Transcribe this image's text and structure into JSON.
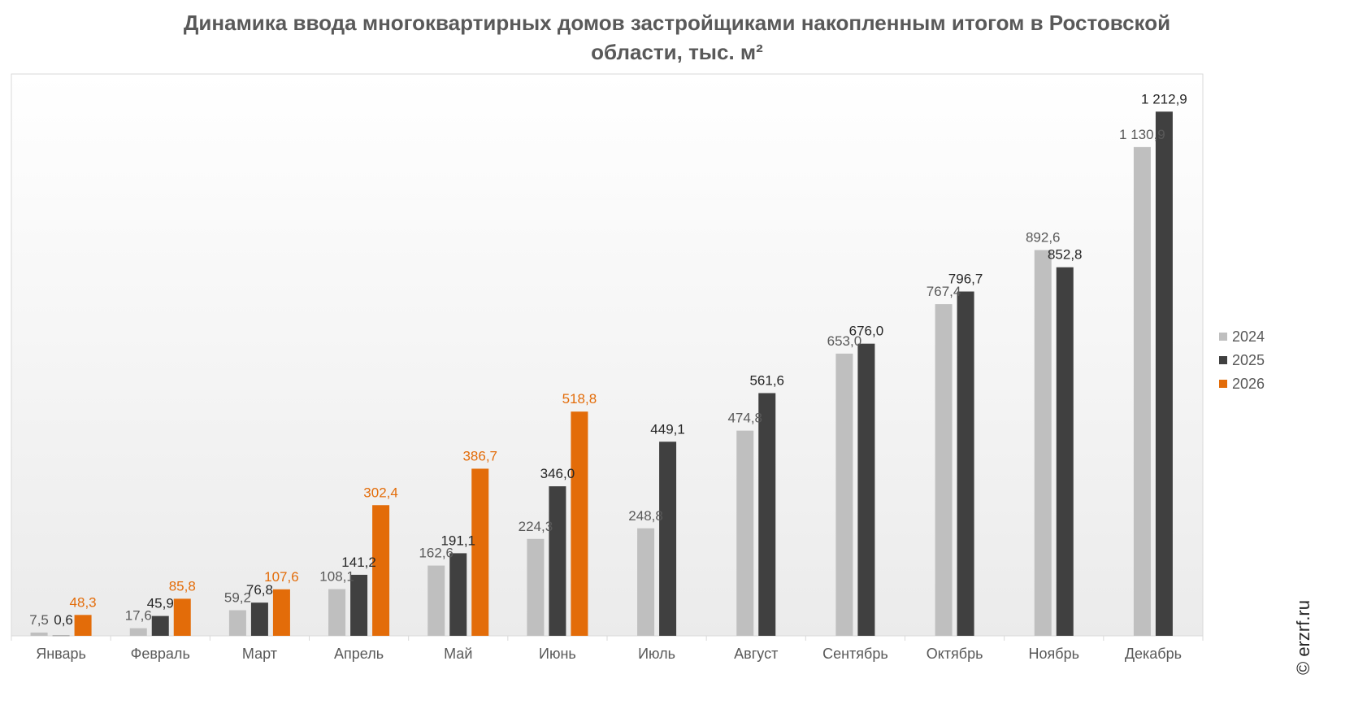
{
  "chart_data": {
    "type": "bar",
    "title": [
      "Динамика ввода многоквартирных домов застройщиками накопленным итогом в Ростовской",
      "области, тыс. м²"
    ],
    "categories": [
      "Январь",
      "Февраль",
      "Март",
      "Апрель",
      "Май",
      "Июнь",
      "Июль",
      "Август",
      "Сентябрь",
      "Октябрь",
      "Ноябрь",
      "Декабрь"
    ],
    "series": [
      {
        "name": "2024",
        "color": "#bfbfbf",
        "label_color": "#595959",
        "values": [
          7.5,
          17.6,
          59.2,
          108.1,
          162.6,
          224.3,
          248.8,
          474.8,
          653.0,
          767.4,
          892.6,
          1130.9
        ],
        "labels": [
          "7,5",
          "17,6",
          "59,2",
          "108,1",
          "162,6",
          "224,3",
          "248,8",
          "474,8",
          "653,0",
          "767,4",
          "892,6",
          "1 130,9"
        ]
      },
      {
        "name": "2025",
        "color": "#404040",
        "label_color": "#262626",
        "values": [
          0.6,
          45.9,
          76.8,
          141.2,
          191.1,
          346.0,
          449.1,
          561.6,
          676.0,
          796.7,
          852.8,
          1212.9
        ],
        "labels": [
          "0,6",
          "45,9",
          "76,8",
          "141,2",
          "191,1",
          "346,0",
          "449,1",
          "561,6",
          "676,0",
          "796,7",
          "852,8",
          "1 212,9"
        ]
      },
      {
        "name": "2026",
        "color": "#e36c09",
        "label_color": "#e36c09",
        "values": [
          48.3,
          85.8,
          107.6,
          302.4,
          386.7,
          518.8,
          null,
          null,
          null,
          null,
          null,
          null
        ],
        "labels": [
          "48,3",
          "85,8",
          "107,6",
          "302,4",
          "386,7",
          "518,8",
          null,
          null,
          null,
          null,
          null,
          null
        ]
      }
    ],
    "ylim": [
      0,
      1300
    ],
    "yaxis_visible": false,
    "grid": false,
    "legend": "right",
    "watermark": "© erzrf.ru"
  }
}
